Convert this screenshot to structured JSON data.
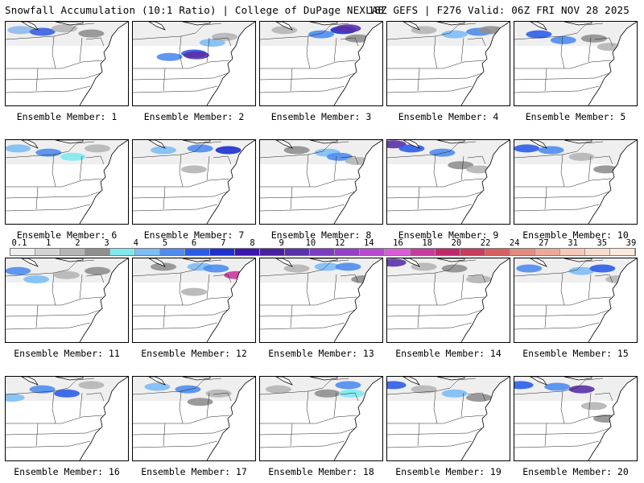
{
  "header": {
    "left": "Snowfall Accumulation (10:1 Ratio) | College of DuPage NEXLAB",
    "right": "18Z GEFS | F276 Valid: 06Z FRI NOV 28 2025"
  },
  "colorbar": {
    "labels": [
      "0.1",
      "1",
      "2",
      "3",
      "4",
      "5",
      "6",
      "7",
      "8",
      "9",
      "10",
      "12",
      "14",
      "16",
      "18",
      "20",
      "22",
      "24",
      "27",
      "31",
      "35",
      "39"
    ],
    "colors": [
      "#efefef",
      "#d4d4d4",
      "#b5b5b5",
      "#8f8f8f",
      "#7fe9f0",
      "#7dbcf4",
      "#4e8cf0",
      "#2d5de8",
      "#1c2fd0",
      "#3c14b0",
      "#4a1fa0",
      "#5a30a8",
      "#7a3cc0",
      "#9640c8",
      "#b84ad0",
      "#d85cd8",
      "#c83a9c",
      "#c0286c",
      "#c83c5c",
      "#d86060",
      "#e48a80",
      "#eea898",
      "#f6c8b8",
      "#f9dccc",
      "#fbeadc"
    ]
  },
  "members": [
    {
      "label": "Ensemble Member: 1",
      "snow": [
        [
          0.12,
          0.1,
          "#8fb8f0"
        ],
        [
          0.3,
          0.12,
          "#3860e0"
        ],
        [
          0.48,
          0.08,
          "#b5b5b5"
        ],
        [
          0.7,
          0.14,
          "#8f8f8f"
        ]
      ]
    },
    {
      "label": "Ensemble Member: 2",
      "snow": [
        [
          0.3,
          0.42,
          "#4e8cf0"
        ],
        [
          0.5,
          0.38,
          "#2d5de8"
        ],
        [
          0.52,
          0.4,
          "#5a30a8"
        ],
        [
          0.65,
          0.25,
          "#7dbcf4"
        ],
        [
          0.75,
          0.18,
          "#b5b5b5"
        ]
      ]
    },
    {
      "label": "Ensemble Member: 3",
      "snow": [
        [
          0.2,
          0.1,
          "#b5b5b5"
        ],
        [
          0.5,
          0.15,
          "#4e8cf0"
        ],
        [
          0.68,
          0.1,
          "#1c2fd0"
        ],
        [
          0.72,
          0.08,
          "#5a30a8"
        ],
        [
          0.8,
          0.2,
          "#8f8f8f"
        ]
      ]
    },
    {
      "label": "Ensemble Member: 4",
      "snow": [
        [
          0.3,
          0.1,
          "#b5b5b5"
        ],
        [
          0.55,
          0.15,
          "#7dbcf4"
        ],
        [
          0.75,
          0.12,
          "#4e8cf0"
        ],
        [
          0.85,
          0.1,
          "#8f8f8f"
        ]
      ]
    },
    {
      "label": "Ensemble Member: 5",
      "snow": [
        [
          0.2,
          0.15,
          "#2d5de8"
        ],
        [
          0.4,
          0.22,
          "#4e8cf0"
        ],
        [
          0.65,
          0.2,
          "#8f8f8f"
        ],
        [
          0.78,
          0.3,
          "#b5b5b5"
        ]
      ]
    },
    {
      "label": "Ensemble Member: 6",
      "snow": [
        [
          0.1,
          0.1,
          "#7dbcf4"
        ],
        [
          0.35,
          0.15,
          "#4e8cf0"
        ],
        [
          0.55,
          0.2,
          "#7fe9f0"
        ],
        [
          0.75,
          0.1,
          "#b5b5b5"
        ]
      ]
    },
    {
      "label": "Ensemble Member: 7",
      "snow": [
        [
          0.25,
          0.12,
          "#7dbcf4"
        ],
        [
          0.55,
          0.1,
          "#4e8cf0"
        ],
        [
          0.78,
          0.12,
          "#1c2fd0"
        ],
        [
          0.5,
          0.35,
          "#b5b5b5"
        ]
      ]
    },
    {
      "label": "Ensemble Member: 8",
      "snow": [
        [
          0.3,
          0.12,
          "#8f8f8f"
        ],
        [
          0.55,
          0.15,
          "#7dbcf4"
        ],
        [
          0.65,
          0.2,
          "#4e8cf0"
        ],
        [
          0.8,
          0.25,
          "#b5b5b5"
        ]
      ]
    },
    {
      "label": "Ensemble Member: 9",
      "snow": [
        [
          0.05,
          0.05,
          "#5a30a8"
        ],
        [
          0.2,
          0.1,
          "#2d5de8"
        ],
        [
          0.45,
          0.15,
          "#4e8cf0"
        ],
        [
          0.6,
          0.3,
          "#8f8f8f"
        ],
        [
          0.75,
          0.35,
          "#b5b5b5"
        ]
      ]
    },
    {
      "label": "Ensemble Member: 10",
      "snow": [
        [
          0.1,
          0.1,
          "#2d5de8"
        ],
        [
          0.3,
          0.12,
          "#4e8cf0"
        ],
        [
          0.55,
          0.2,
          "#b5b5b5"
        ],
        [
          0.75,
          0.35,
          "#8f8f8f"
        ]
      ]
    },
    {
      "label": "Ensemble Member: 11",
      "snow": [
        [
          0.1,
          0.15,
          "#4e8cf0"
        ],
        [
          0.25,
          0.25,
          "#7dbcf4"
        ],
        [
          0.5,
          0.2,
          "#b5b5b5"
        ],
        [
          0.75,
          0.15,
          "#8f8f8f"
        ]
      ]
    },
    {
      "label": "Ensemble Member: 12",
      "snow": [
        [
          0.25,
          0.1,
          "#8f8f8f"
        ],
        [
          0.55,
          0.1,
          "#7dbcf4"
        ],
        [
          0.68,
          0.12,
          "#4e8cf0"
        ],
        [
          0.85,
          0.2,
          "#c83a9c"
        ],
        [
          0.5,
          0.4,
          "#b5b5b5"
        ]
      ]
    },
    {
      "label": "Ensemble Member: 13",
      "snow": [
        [
          0.3,
          0.12,
          "#b5b5b5"
        ],
        [
          0.55,
          0.1,
          "#7dbcf4"
        ],
        [
          0.72,
          0.1,
          "#4e8cf0"
        ],
        [
          0.85,
          0.25,
          "#8f8f8f"
        ]
      ]
    },
    {
      "label": "Ensemble Member: 14",
      "snow": [
        [
          0.05,
          0.05,
          "#5a30a8"
        ],
        [
          0.3,
          0.1,
          "#b5b5b5"
        ],
        [
          0.55,
          0.12,
          "#8f8f8f"
        ],
        [
          0.75,
          0.25,
          "#b5b5b5"
        ]
      ]
    },
    {
      "label": "Ensemble Member: 15",
      "snow": [
        [
          0.12,
          0.12,
          "#4e8cf0"
        ],
        [
          0.55,
          0.15,
          "#7dbcf4"
        ],
        [
          0.72,
          0.12,
          "#2d5de8"
        ],
        [
          0.85,
          0.25,
          "#b5b5b5"
        ]
      ]
    },
    {
      "label": "Ensemble Member: 16",
      "snow": [
        [
          0.05,
          0.25,
          "#7dbcf4"
        ],
        [
          0.3,
          0.15,
          "#4e8cf0"
        ],
        [
          0.5,
          0.2,
          "#2d5de8"
        ],
        [
          0.7,
          0.1,
          "#b5b5b5"
        ]
      ]
    },
    {
      "label": "Ensemble Member: 17",
      "snow": [
        [
          0.2,
          0.12,
          "#7dbcf4"
        ],
        [
          0.45,
          0.15,
          "#4e8cf0"
        ],
        [
          0.55,
          0.3,
          "#8f8f8f"
        ],
        [
          0.7,
          0.2,
          "#b5b5b5"
        ]
      ]
    },
    {
      "label": "Ensemble Member: 18",
      "snow": [
        [
          0.15,
          0.15,
          "#b5b5b5"
        ],
        [
          0.55,
          0.2,
          "#8f8f8f"
        ],
        [
          0.72,
          0.1,
          "#4e8cf0"
        ],
        [
          0.75,
          0.2,
          "#7fe9f0"
        ]
      ]
    },
    {
      "label": "Ensemble Member: 19",
      "snow": [
        [
          0.05,
          0.1,
          "#2d5de8"
        ],
        [
          0.3,
          0.15,
          "#b5b5b5"
        ],
        [
          0.55,
          0.2,
          "#7dbcf4"
        ],
        [
          0.75,
          0.25,
          "#8f8f8f"
        ]
      ]
    },
    {
      "label": "Ensemble Member: 20",
      "snow": [
        [
          0.05,
          0.1,
          "#2d5de8"
        ],
        [
          0.35,
          0.12,
          "#4e8cf0"
        ],
        [
          0.55,
          0.15,
          "#5a30a8"
        ],
        [
          0.65,
          0.35,
          "#b5b5b5"
        ],
        [
          0.75,
          0.5,
          "#8f8f8f"
        ]
      ]
    }
  ]
}
